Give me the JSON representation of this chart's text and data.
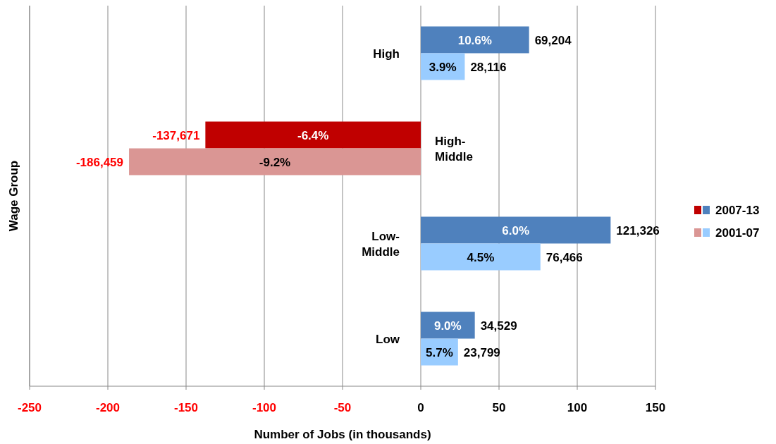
{
  "chart_data": {
    "type": "bar",
    "orientation": "horizontal",
    "xlabel": "Number of Jobs (in thousands)",
    "ylabel": "Wage Group",
    "categories": [
      "High",
      "High-Middle",
      "Low-Middle",
      "Low"
    ],
    "series": [
      {
        "name": "2007-13",
        "colors": [
          "#4f81bd",
          "#c00000",
          "#4f81bd",
          "#4f81bd"
        ],
        "values": [
          69.204,
          -137.671,
          121.326,
          34.529
        ]
      },
      {
        "name": "2001-07",
        "colors": [
          "#99ccff",
          "#da9694",
          "#99ccff",
          "#99ccff"
        ],
        "values": [
          28.116,
          -186.459,
          76.466,
          23.799
        ]
      }
    ],
    "annotations": [
      "10.6%",
      "3.9%",
      "-6.4%",
      "-9.2%",
      "6.0%",
      "4.5%",
      "9.0%",
      "5.7%",
      "69,204",
      "28,116",
      "-137,671",
      "-186,459",
      "121,326",
      "76,466",
      "34,529",
      "23,799"
    ],
    "xlim": [
      -250,
      150
    ],
    "xticks": [
      -250,
      -200,
      -150,
      -100,
      -50,
      0,
      50,
      100,
      150
    ],
    "grid": "x",
    "legend": "right"
  }
}
